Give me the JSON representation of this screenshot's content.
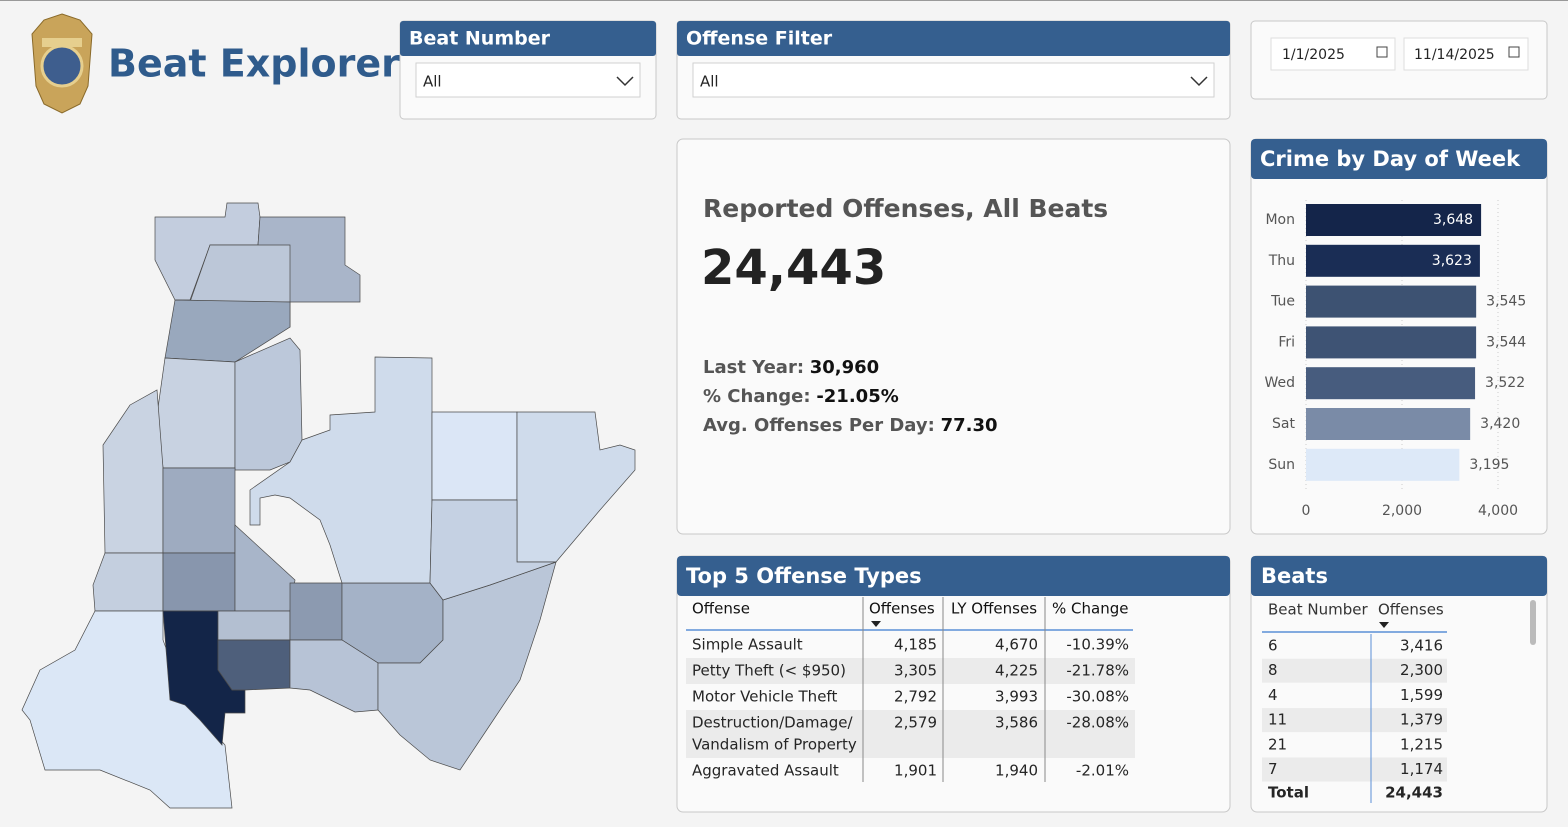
{
  "header": {
    "title": "Beat Explorer"
  },
  "filters": {
    "beat_number": {
      "label": "Beat Number",
      "value": "All"
    },
    "offense_filter": {
      "label": "Offense Filter",
      "value": "All"
    },
    "date_range": {
      "start": "1/1/2025",
      "end": "11/14/2025"
    }
  },
  "kpi": {
    "title": "Reported Offenses, All Beats",
    "value": "24,443",
    "last_year_label": "Last Year:",
    "last_year": "30,960",
    "change_label": "% Change:",
    "change": "-21.05%",
    "avg_label": "Avg. Offenses Per Day:",
    "avg": "77.30"
  },
  "chart_data": {
    "type": "bar",
    "orientation": "horizontal",
    "title": "Crime by Day of Week",
    "categories": [
      "Mon",
      "Thu",
      "Tue",
      "Fri",
      "Wed",
      "Sat",
      "Sun"
    ],
    "values": [
      3648,
      3623,
      3545,
      3544,
      3522,
      3420,
      3195
    ],
    "value_labels": [
      "3,648",
      "3,623",
      "3,545",
      "3,544",
      "3,522",
      "3,420",
      "3,195"
    ],
    "colors": [
      "#14254a",
      "#1a2d55",
      "#3d5272",
      "#3e5374",
      "#475c7e",
      "#7a8ba7",
      "#dde9f8"
    ],
    "xlim": [
      0,
      4000
    ],
    "xticks": [
      0,
      {
        "value": 2000,
        "label": "2,000"
      },
      {
        "value": 4000,
        "label": "4,000"
      }
    ],
    "grid": true
  },
  "top_offenses": {
    "title": "Top 5 Offense Types",
    "columns": [
      "Offense",
      "Offenses",
      "LY Offenses",
      "% Change"
    ],
    "rows": [
      [
        "Simple Assault",
        "4,185",
        "4,670",
        "-10.39%"
      ],
      [
        "Petty Theft (< $950)",
        "3,305",
        "4,225",
        "-21.78%"
      ],
      [
        "Motor Vehicle Theft",
        "2,792",
        "3,993",
        "-30.08%"
      ],
      [
        [
          "Destruction/Damage/",
          "Vandalism of Property"
        ],
        "2,579",
        "3,586",
        "-28.08%"
      ],
      [
        "Aggravated Assault",
        "1,901",
        "1,940",
        "-2.01%"
      ]
    ]
  },
  "beats": {
    "title": "Beats",
    "columns": [
      "Beat Number",
      "Offenses"
    ],
    "rows": [
      [
        "6",
        "3,416"
      ],
      [
        "8",
        "2,300"
      ],
      [
        "4",
        "1,599"
      ],
      [
        "11",
        "1,379"
      ],
      [
        "21",
        "1,215"
      ],
      [
        "7",
        "1,174"
      ]
    ],
    "total": [
      "Total",
      "24,443"
    ]
  }
}
